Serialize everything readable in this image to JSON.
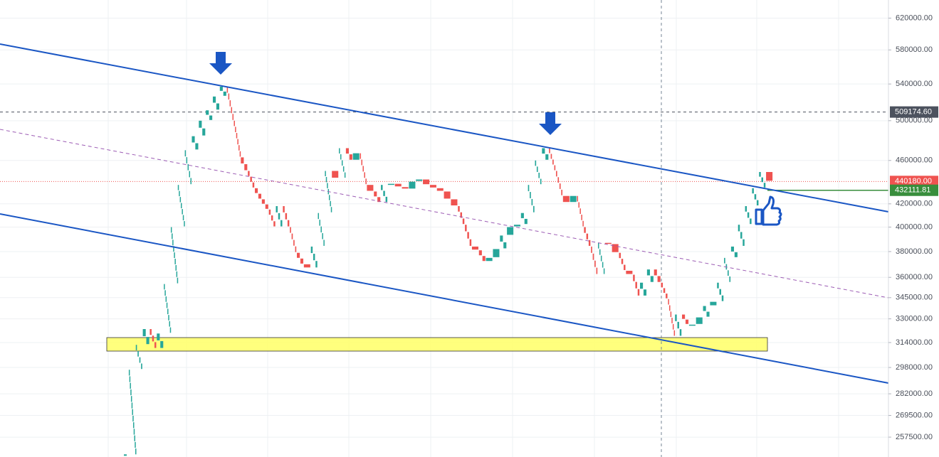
{
  "chart_data": {
    "type": "candlestick",
    "yscale": "log",
    "ylim": [
      247000,
      644000
    ],
    "yticks": [
      {
        "value": 620000,
        "label": "620000.00"
      },
      {
        "value": 580000,
        "label": "580000.00"
      },
      {
        "value": 540000,
        "label": "540000.00"
      },
      {
        "value": 500000,
        "label": "500000.00"
      },
      {
        "value": 460000,
        "label": "460000.00"
      },
      {
        "value": 420000,
        "label": "420000.00"
      },
      {
        "value": 400000,
        "label": "400000.00"
      },
      {
        "value": 380000,
        "label": "380000.00"
      },
      {
        "value": 360000,
        "label": "360000.00"
      },
      {
        "value": 345000,
        "label": "345000.00"
      },
      {
        "value": 330000,
        "label": "330000.00"
      },
      {
        "value": 314000,
        "label": "314000.00"
      },
      {
        "value": 298000,
        "label": "298000.00"
      },
      {
        "value": 282000,
        "label": "282000.00"
      },
      {
        "value": 269500,
        "label": "269500.00"
      },
      {
        "value": 257500,
        "label": "257500.00"
      }
    ],
    "grid": true,
    "up_color": "#26a69a",
    "down_color": "#ef5350",
    "values": [
      248000,
      296600,
      312500,
      323000,
      310000,
      320000,
      355000,
      400000,
      437000,
      470000,
      484000,
      500000,
      511000,
      526000,
      537000,
      500000,
      463000,
      450000,
      434000,
      424000,
      415000,
      400000,
      418000,
      400000,
      379000,
      370000,
      367000,
      384000,
      412000,
      450000,
      443000,
      472000,
      460000,
      467000,
      437000,
      431000,
      421000,
      437000,
      438000,
      435000,
      433000,
      440000,
      442000,
      437000,
      434000,
      431000,
      424000,
      418000,
      402000,
      384000,
      381000,
      372000,
      375000,
      382000,
      393000,
      400000,
      402000,
      412000,
      437000,
      460000,
      472000,
      450000,
      427000,
      421000,
      427000,
      400000,
      384000,
      362000,
      387000,
      386000,
      379000,
      365000,
      362000,
      346000,
      356000,
      366000,
      356000,
      344000,
      318000,
      333000,
      326000,
      326000,
      331000,
      339000,
      342000,
      356000,
      375000,
      384000,
      402000,
      418000,
      434000,
      449000,
      440180
    ],
    "price_lines": [
      {
        "value": 509174.6,
        "label": "509174.60",
        "color": "#4c525e",
        "style": "dashed"
      },
      {
        "value": 440180,
        "label": "440180.00",
        "color": "#ef5350",
        "style": "dotted"
      },
      {
        "value": 432111.81,
        "label": "432111.81",
        "color": "#388e3c",
        "style": "solid"
      }
    ]
  }
}
